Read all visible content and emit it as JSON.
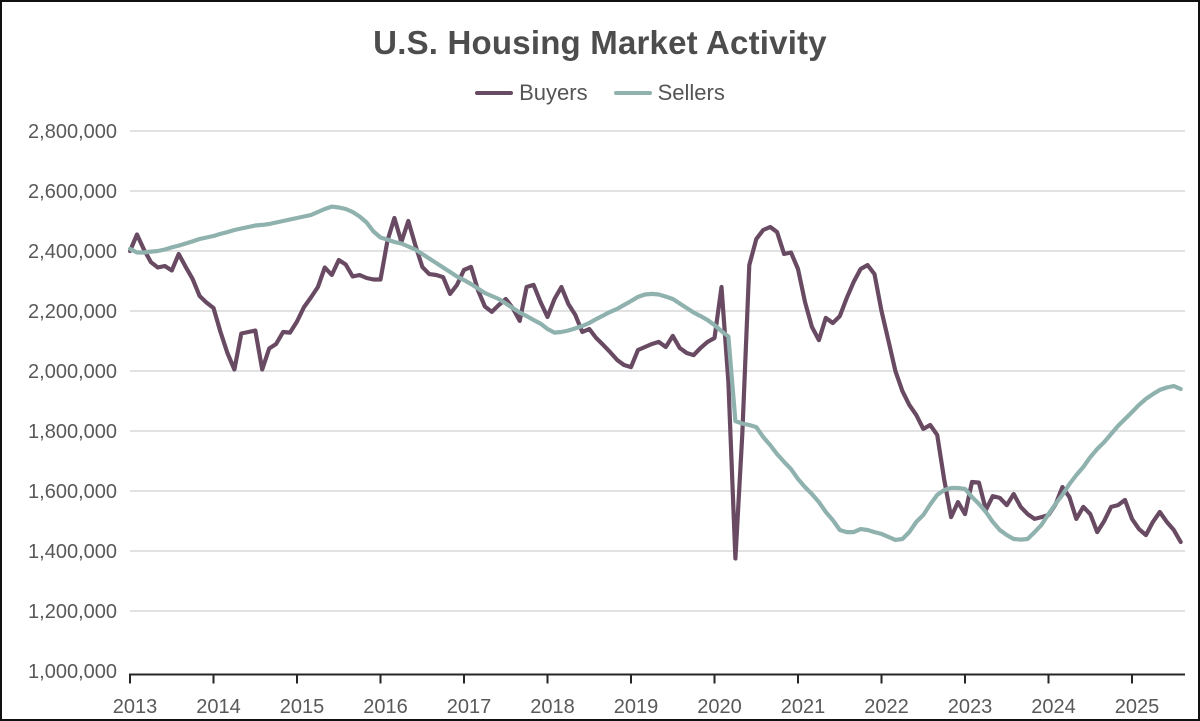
{
  "colors": {
    "background": "#ffffff",
    "frame_border": "#111111",
    "title_text": "#4d4d4d",
    "legend_text": "#555555",
    "tick_label": "#595959",
    "gridline": "#d9d9d9",
    "axis_line": "#262626",
    "buyers_line": "#694a63",
    "sellers_line": "#8fb2ae"
  },
  "chart_data": {
    "type": "line",
    "title": "U.S. Housing Market Activity",
    "legend": [
      {
        "name": "Buyers",
        "color": "#694a63"
      },
      {
        "name": "Sellers",
        "color": "#8fb2ae"
      }
    ],
    "legend_position": "top-center",
    "grid": "horizontal",
    "x_tick_years": [
      "2013",
      "2014",
      "2015",
      "2016",
      "2017",
      "2018",
      "2019",
      "2020",
      "2021",
      "2022",
      "2023",
      "2024",
      "2025"
    ],
    "x_range_years": [
      2013.0,
      2025.67
    ],
    "frequency": "monthly",
    "start_month": "2013-01",
    "end_month": "2025-08",
    "ylim": [
      1000000,
      2800000
    ],
    "y_ticks": [
      1000000,
      1200000,
      1400000,
      1600000,
      1800000,
      2000000,
      2200000,
      2400000,
      2600000,
      2800000
    ],
    "y_tick_labels": [
      "1,000,000",
      "1,200,000",
      "1,400,000",
      "1,600,000",
      "1,800,000",
      "2,000,000",
      "2,200,000",
      "2,400,000",
      "2,600,000",
      "2,800,000"
    ],
    "series": [
      {
        "name": "Buyers",
        "color": "#694a63",
        "values": [
          2400000,
          2455000,
          2405000,
          2363000,
          2345000,
          2350000,
          2335000,
          2390000,
          2347000,
          2307000,
          2250000,
          2228000,
          2210000,
          2130000,
          2060000,
          2005000,
          2125000,
          2130000,
          2135000,
          2005000,
          2075000,
          2090000,
          2130000,
          2128000,
          2165000,
          2213000,
          2245000,
          2280000,
          2345000,
          2320000,
          2370000,
          2355000,
          2315000,
          2320000,
          2310000,
          2305000,
          2305000,
          2435000,
          2510000,
          2430000,
          2500000,
          2420000,
          2347000,
          2323000,
          2320000,
          2313000,
          2257000,
          2287000,
          2337000,
          2347000,
          2270000,
          2215000,
          2197000,
          2220000,
          2240000,
          2210000,
          2167000,
          2280000,
          2287000,
          2230000,
          2180000,
          2240000,
          2280000,
          2223000,
          2187000,
          2130000,
          2140000,
          2110000,
          2087000,
          2063000,
          2037000,
          2020000,
          2013000,
          2070000,
          2080000,
          2090000,
          2097000,
          2080000,
          2117000,
          2077000,
          2060000,
          2053000,
          2077000,
          2097000,
          2110000,
          2280000,
          1963000,
          1375000,
          1790000,
          2353000,
          2440000,
          2470000,
          2480000,
          2463000,
          2390000,
          2395000,
          2340000,
          2230000,
          2147000,
          2103000,
          2177000,
          2160000,
          2183000,
          2243000,
          2297000,
          2340000,
          2353000,
          2323000,
          2200000,
          2100000,
          2000000,
          1933000,
          1887000,
          1853000,
          1807000,
          1820000,
          1787000,
          1640000,
          1513000,
          1563000,
          1523000,
          1630000,
          1628000,
          1537000,
          1583000,
          1577000,
          1553000,
          1590000,
          1547000,
          1523000,
          1507000,
          1513000,
          1520000,
          1555000,
          1613000,
          1580000,
          1507000,
          1547000,
          1523000,
          1463000,
          1500000,
          1547000,
          1553000,
          1570000,
          1507000,
          1473000,
          1453000,
          1497000,
          1530000,
          1497000,
          1470000,
          1430000
        ]
      },
      {
        "name": "Sellers",
        "color": "#8fb2ae",
        "values": [
          2407000,
          2395000,
          2395000,
          2398000,
          2400000,
          2405000,
          2412000,
          2418000,
          2425000,
          2432000,
          2440000,
          2445000,
          2450000,
          2457000,
          2463000,
          2470000,
          2475000,
          2480000,
          2485000,
          2487000,
          2490000,
          2495000,
          2500000,
          2505000,
          2510000,
          2515000,
          2520000,
          2530000,
          2540000,
          2548000,
          2545000,
          2540000,
          2530000,
          2515000,
          2495000,
          2465000,
          2445000,
          2438000,
          2430000,
          2425000,
          2415000,
          2405000,
          2390000,
          2375000,
          2360000,
          2345000,
          2330000,
          2315000,
          2303000,
          2290000,
          2275000,
          2260000,
          2250000,
          2240000,
          2225000,
          2210000,
          2195000,
          2183000,
          2170000,
          2158000,
          2140000,
          2128000,
          2130000,
          2135000,
          2142000,
          2150000,
          2160000,
          2173000,
          2185000,
          2197000,
          2207000,
          2220000,
          2233000,
          2247000,
          2255000,
          2257000,
          2255000,
          2248000,
          2240000,
          2225000,
          2210000,
          2195000,
          2183000,
          2170000,
          2153000,
          2133000,
          2115000,
          1833000,
          1825000,
          1820000,
          1813000,
          1780000,
          1753000,
          1723000,
          1697000,
          1673000,
          1640000,
          1613000,
          1590000,
          1563000,
          1530000,
          1503000,
          1470000,
          1463000,
          1463000,
          1473000,
          1470000,
          1463000,
          1457000,
          1447000,
          1437000,
          1440000,
          1463000,
          1497000,
          1520000,
          1555000,
          1587000,
          1603000,
          1610000,
          1610000,
          1607000,
          1580000,
          1557000,
          1530000,
          1497000,
          1470000,
          1453000,
          1440000,
          1438000,
          1440000,
          1463000,
          1487000,
          1523000,
          1557000,
          1587000,
          1623000,
          1653000,
          1680000,
          1713000,
          1740000,
          1763000,
          1790000,
          1817000,
          1840000,
          1863000,
          1887000,
          1907000,
          1923000,
          1937000,
          1945000,
          1950000,
          1940000
        ]
      }
    ]
  }
}
